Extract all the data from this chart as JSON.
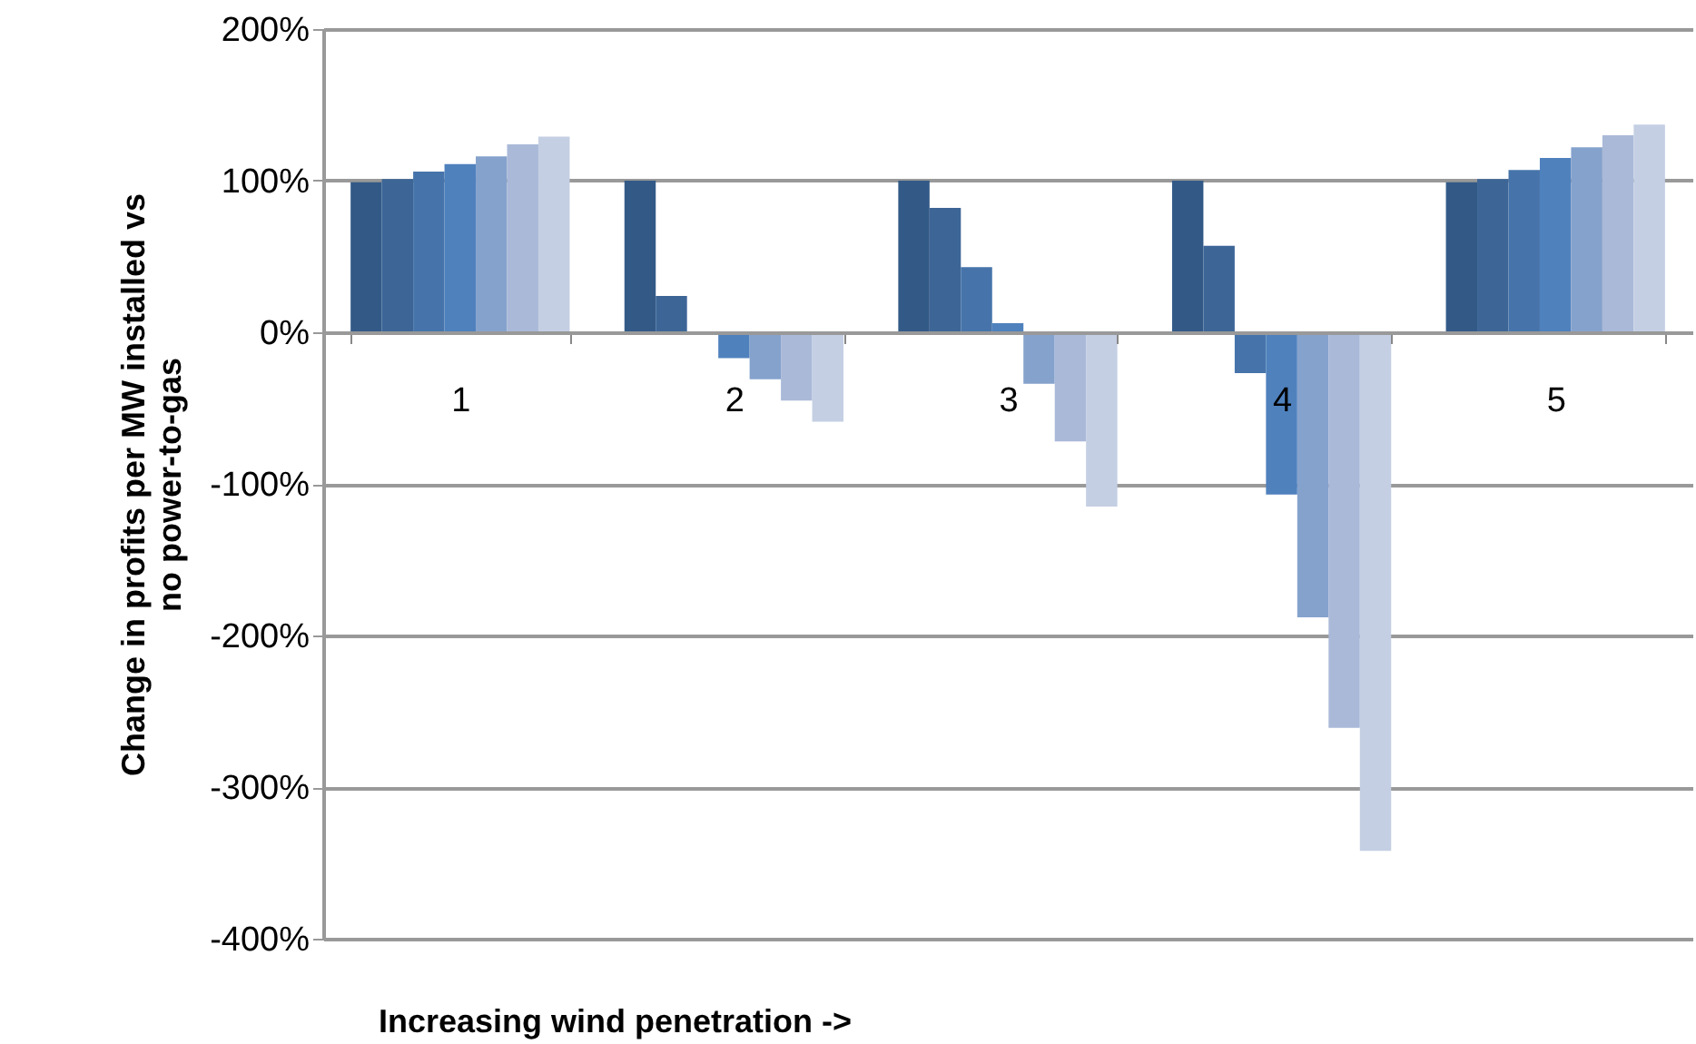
{
  "chart_data": {
    "type": "bar",
    "xlabel": "Increasing wind penetration ->",
    "ylabel": [
      "Change in profits per MW installed vs",
      "no power-to-gas"
    ],
    "categories": [
      "1",
      "2",
      "3",
      "4",
      "5"
    ],
    "series": [
      {
        "color": "#335a87",
        "values": [
          99,
          100,
          100,
          100,
          99
        ]
      },
      {
        "color": "#3d6697",
        "values": [
          101,
          24,
          82,
          57,
          101
        ]
      },
      {
        "color": "#4674aa",
        "values": [
          106,
          null,
          43,
          -27,
          107
        ]
      },
      {
        "color": "#4f81bd",
        "values": [
          111,
          -17,
          6,
          -107,
          115
        ]
      },
      {
        "color": "#85a2cc",
        "values": [
          116,
          -31,
          -34,
          -188,
          122
        ]
      },
      {
        "color": "#aab9d8",
        "values": [
          124,
          -45,
          -72,
          -261,
          130
        ]
      },
      {
        "color": "#c4cfe3",
        "values": [
          129,
          -59,
          -115,
          -342,
          137
        ]
      }
    ],
    "ylim": [
      -400,
      200
    ],
    "yticks": [
      {
        "value": -400,
        "label": "-400%"
      },
      {
        "value": -300,
        "label": "-300%"
      },
      {
        "value": -200,
        "label": "-200%"
      },
      {
        "value": -100,
        "label": "-100%"
      },
      {
        "value": 0,
        "label": "0%"
      },
      {
        "value": 100,
        "label": "100%"
      },
      {
        "value": 200,
        "label": "200%"
      }
    ],
    "grid": "y"
  }
}
